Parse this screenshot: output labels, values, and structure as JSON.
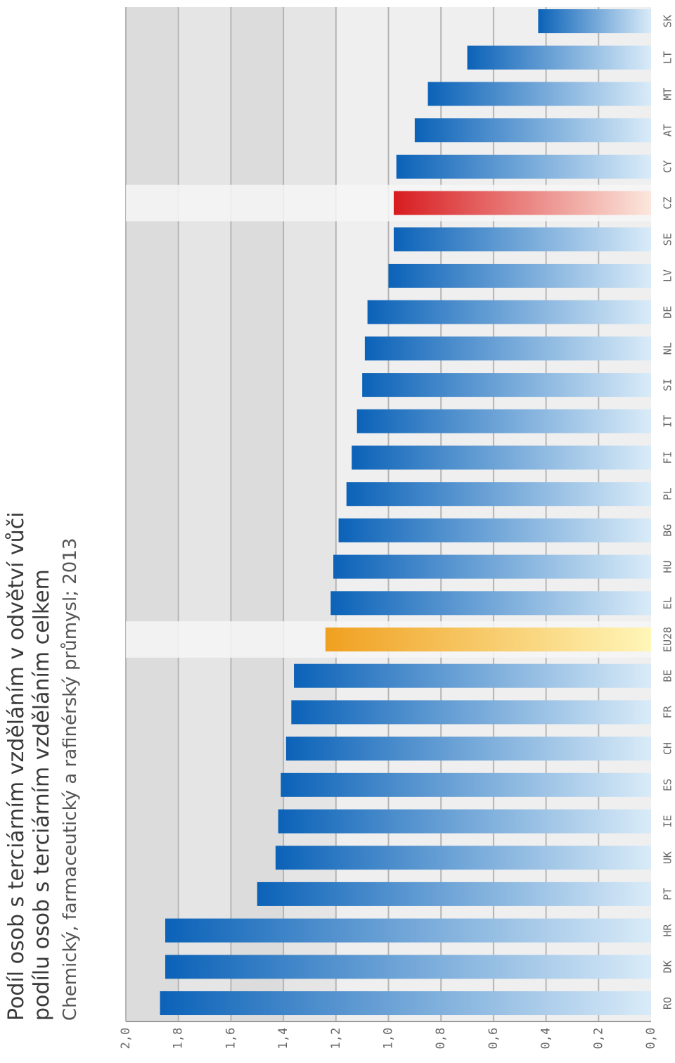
{
  "chart_data": {
    "type": "bar",
    "orientation": "horizontal",
    "title": "Podíl osob s terciárním vzděláním v odvětví vůči podílu osob s terciárním vzděláním celkem",
    "subtitle": "Chemický, farmaceutický a rafinérský průmysl; 2013",
    "xlabel": "",
    "ylabel": "",
    "categories": [
      "RO",
      "DK",
      "HR",
      "PT",
      "UK",
      "IE",
      "ES",
      "CH",
      "FR",
      "BE",
      "EU28",
      "EL",
      "HU",
      "BG",
      "PL",
      "FI",
      "IT",
      "SI",
      "NL",
      "DE",
      "LV",
      "SE",
      "CZ",
      "CY",
      "AT",
      "MT",
      "LT",
      "SK"
    ],
    "values": [
      1.87,
      1.85,
      1.85,
      1.5,
      1.43,
      1.42,
      1.41,
      1.39,
      1.37,
      1.36,
      1.24,
      1.22,
      1.21,
      1.19,
      1.16,
      1.14,
      1.12,
      1.1,
      1.09,
      1.08,
      1.0,
      0.98,
      0.98,
      0.97,
      0.9,
      0.85,
      0.7,
      0.43
    ],
    "value_axis": {
      "min": 0,
      "max": 2.0,
      "ticks": [
        "0,0",
        "0,2",
        "0,4",
        "0,6",
        "0,8",
        "1,0",
        "1,2",
        "1,4",
        "1,6",
        "1,8",
        "2,0"
      ]
    },
    "highlights": {
      "EU28": "orange",
      "CZ": "red"
    },
    "grid": true,
    "legend": "none",
    "colors": {
      "bar_dark": "#0b62b8",
      "bar_light": "#d9ebf8",
      "eu_dark": "#f0a020",
      "eu_light": "#fff6b8",
      "cz_dark": "#d81c20",
      "cz_light": "#fbe7dd",
      "band_dark": "#dcdcdc",
      "band_light": "#efefef",
      "gridline": "#b5b5b5"
    }
  }
}
